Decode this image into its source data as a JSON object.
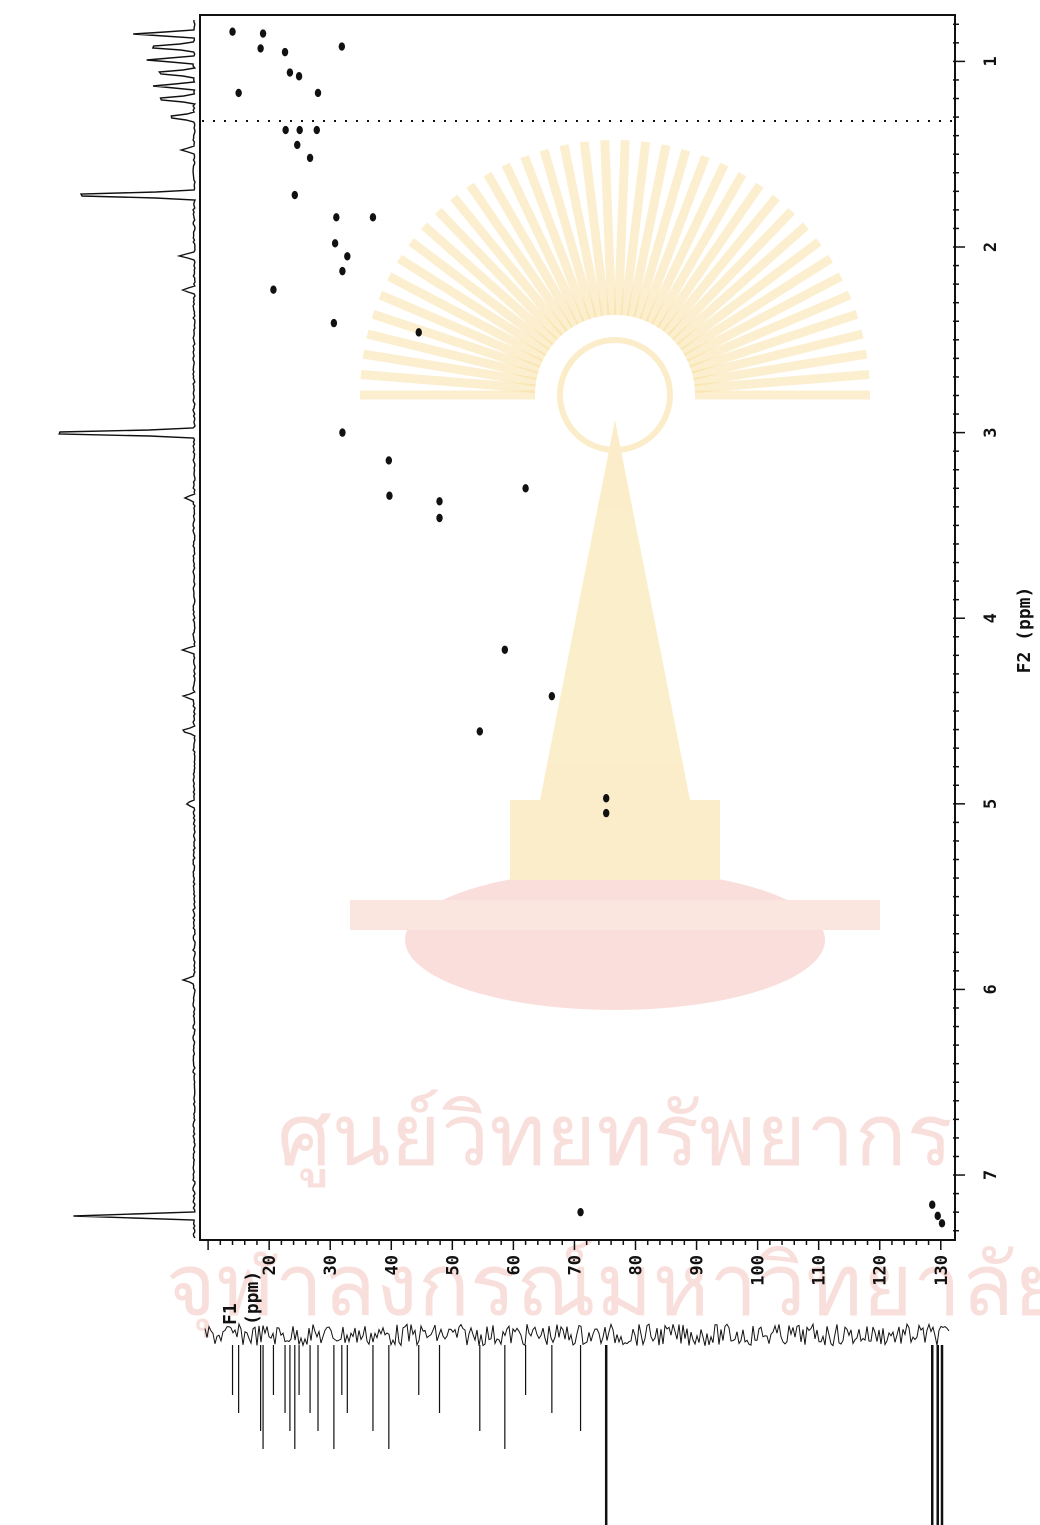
{
  "chart_data": {
    "type": "scatter",
    "subtype": "2D NMR HSQC contour plot",
    "x_axis": {
      "label": "F2 (ppm)",
      "range": [
        0.75,
        7.35
      ],
      "ticks": [
        1,
        2,
        3,
        4,
        5,
        6,
        7
      ]
    },
    "y_axis": {
      "label_line1": "F1",
      "label_line2": "(ppm)",
      "range": [
        9,
        132
      ],
      "ticks": [
        20,
        30,
        40,
        50,
        60,
        70,
        80,
        90,
        100,
        110,
        120,
        130
      ]
    },
    "grid": false,
    "cross_peaks": [
      {
        "f2": 0.84,
        "f1": 14.0
      },
      {
        "f2": 0.85,
        "f1": 19.0
      },
      {
        "f2": 0.93,
        "f1": 18.6
      },
      {
        "f2": 0.95,
        "f1": 22.6
      },
      {
        "f2": 0.92,
        "f1": 31.9
      },
      {
        "f2": 1.06,
        "f1": 23.4
      },
      {
        "f2": 1.08,
        "f1": 24.9
      },
      {
        "f2": 1.17,
        "f1": 15.0
      },
      {
        "f2": 1.17,
        "f1": 28.0
      },
      {
        "f2": 1.37,
        "f1": 22.7
      },
      {
        "f2": 1.37,
        "f1": 25.0
      },
      {
        "f2": 1.37,
        "f1": 27.8
      },
      {
        "f2": 1.45,
        "f1": 24.6
      },
      {
        "f2": 1.52,
        "f1": 26.7
      },
      {
        "f2": 1.72,
        "f1": 24.2
      },
      {
        "f2": 1.84,
        "f1": 31.0
      },
      {
        "f2": 1.84,
        "f1": 37.0
      },
      {
        "f2": 1.98,
        "f1": 30.8
      },
      {
        "f2": 2.05,
        "f1": 32.8
      },
      {
        "f2": 2.13,
        "f1": 32.0
      },
      {
        "f2": 2.23,
        "f1": 20.7
      },
      {
        "f2": 2.41,
        "f1": 30.6
      },
      {
        "f2": 2.46,
        "f1": 44.5
      },
      {
        "f2": 3.0,
        "f1": 32.0
      },
      {
        "f2": 3.15,
        "f1": 39.6
      },
      {
        "f2": 3.34,
        "f1": 39.7
      },
      {
        "f2": 3.37,
        "f1": 47.9
      },
      {
        "f2": 3.46,
        "f1": 47.9
      },
      {
        "f2": 3.3,
        "f1": 62.0
      },
      {
        "f2": 4.17,
        "f1": 58.6
      },
      {
        "f2": 4.42,
        "f1": 66.3
      },
      {
        "f2": 4.61,
        "f1": 54.5
      },
      {
        "f2": 4.97,
        "f1": 75.2
      },
      {
        "f2": 5.05,
        "f1": 75.2
      },
      {
        "f2": 7.2,
        "f1": 71.0
      },
      {
        "f2": 7.16,
        "f1": 128.6
      },
      {
        "f2": 7.22,
        "f1": 129.5
      },
      {
        "f2": 7.26,
        "f1": 130.2
      }
    ]
  },
  "watermark": {
    "line1": "ศูนย์วิทยทรัพยากร",
    "line2": "จุฬาลงกรณ์มหาวิทยาลัย"
  },
  "colors": {
    "ink": "#111111",
    "watermark": "#f4c6c0",
    "emblem": "#f7d98a"
  }
}
